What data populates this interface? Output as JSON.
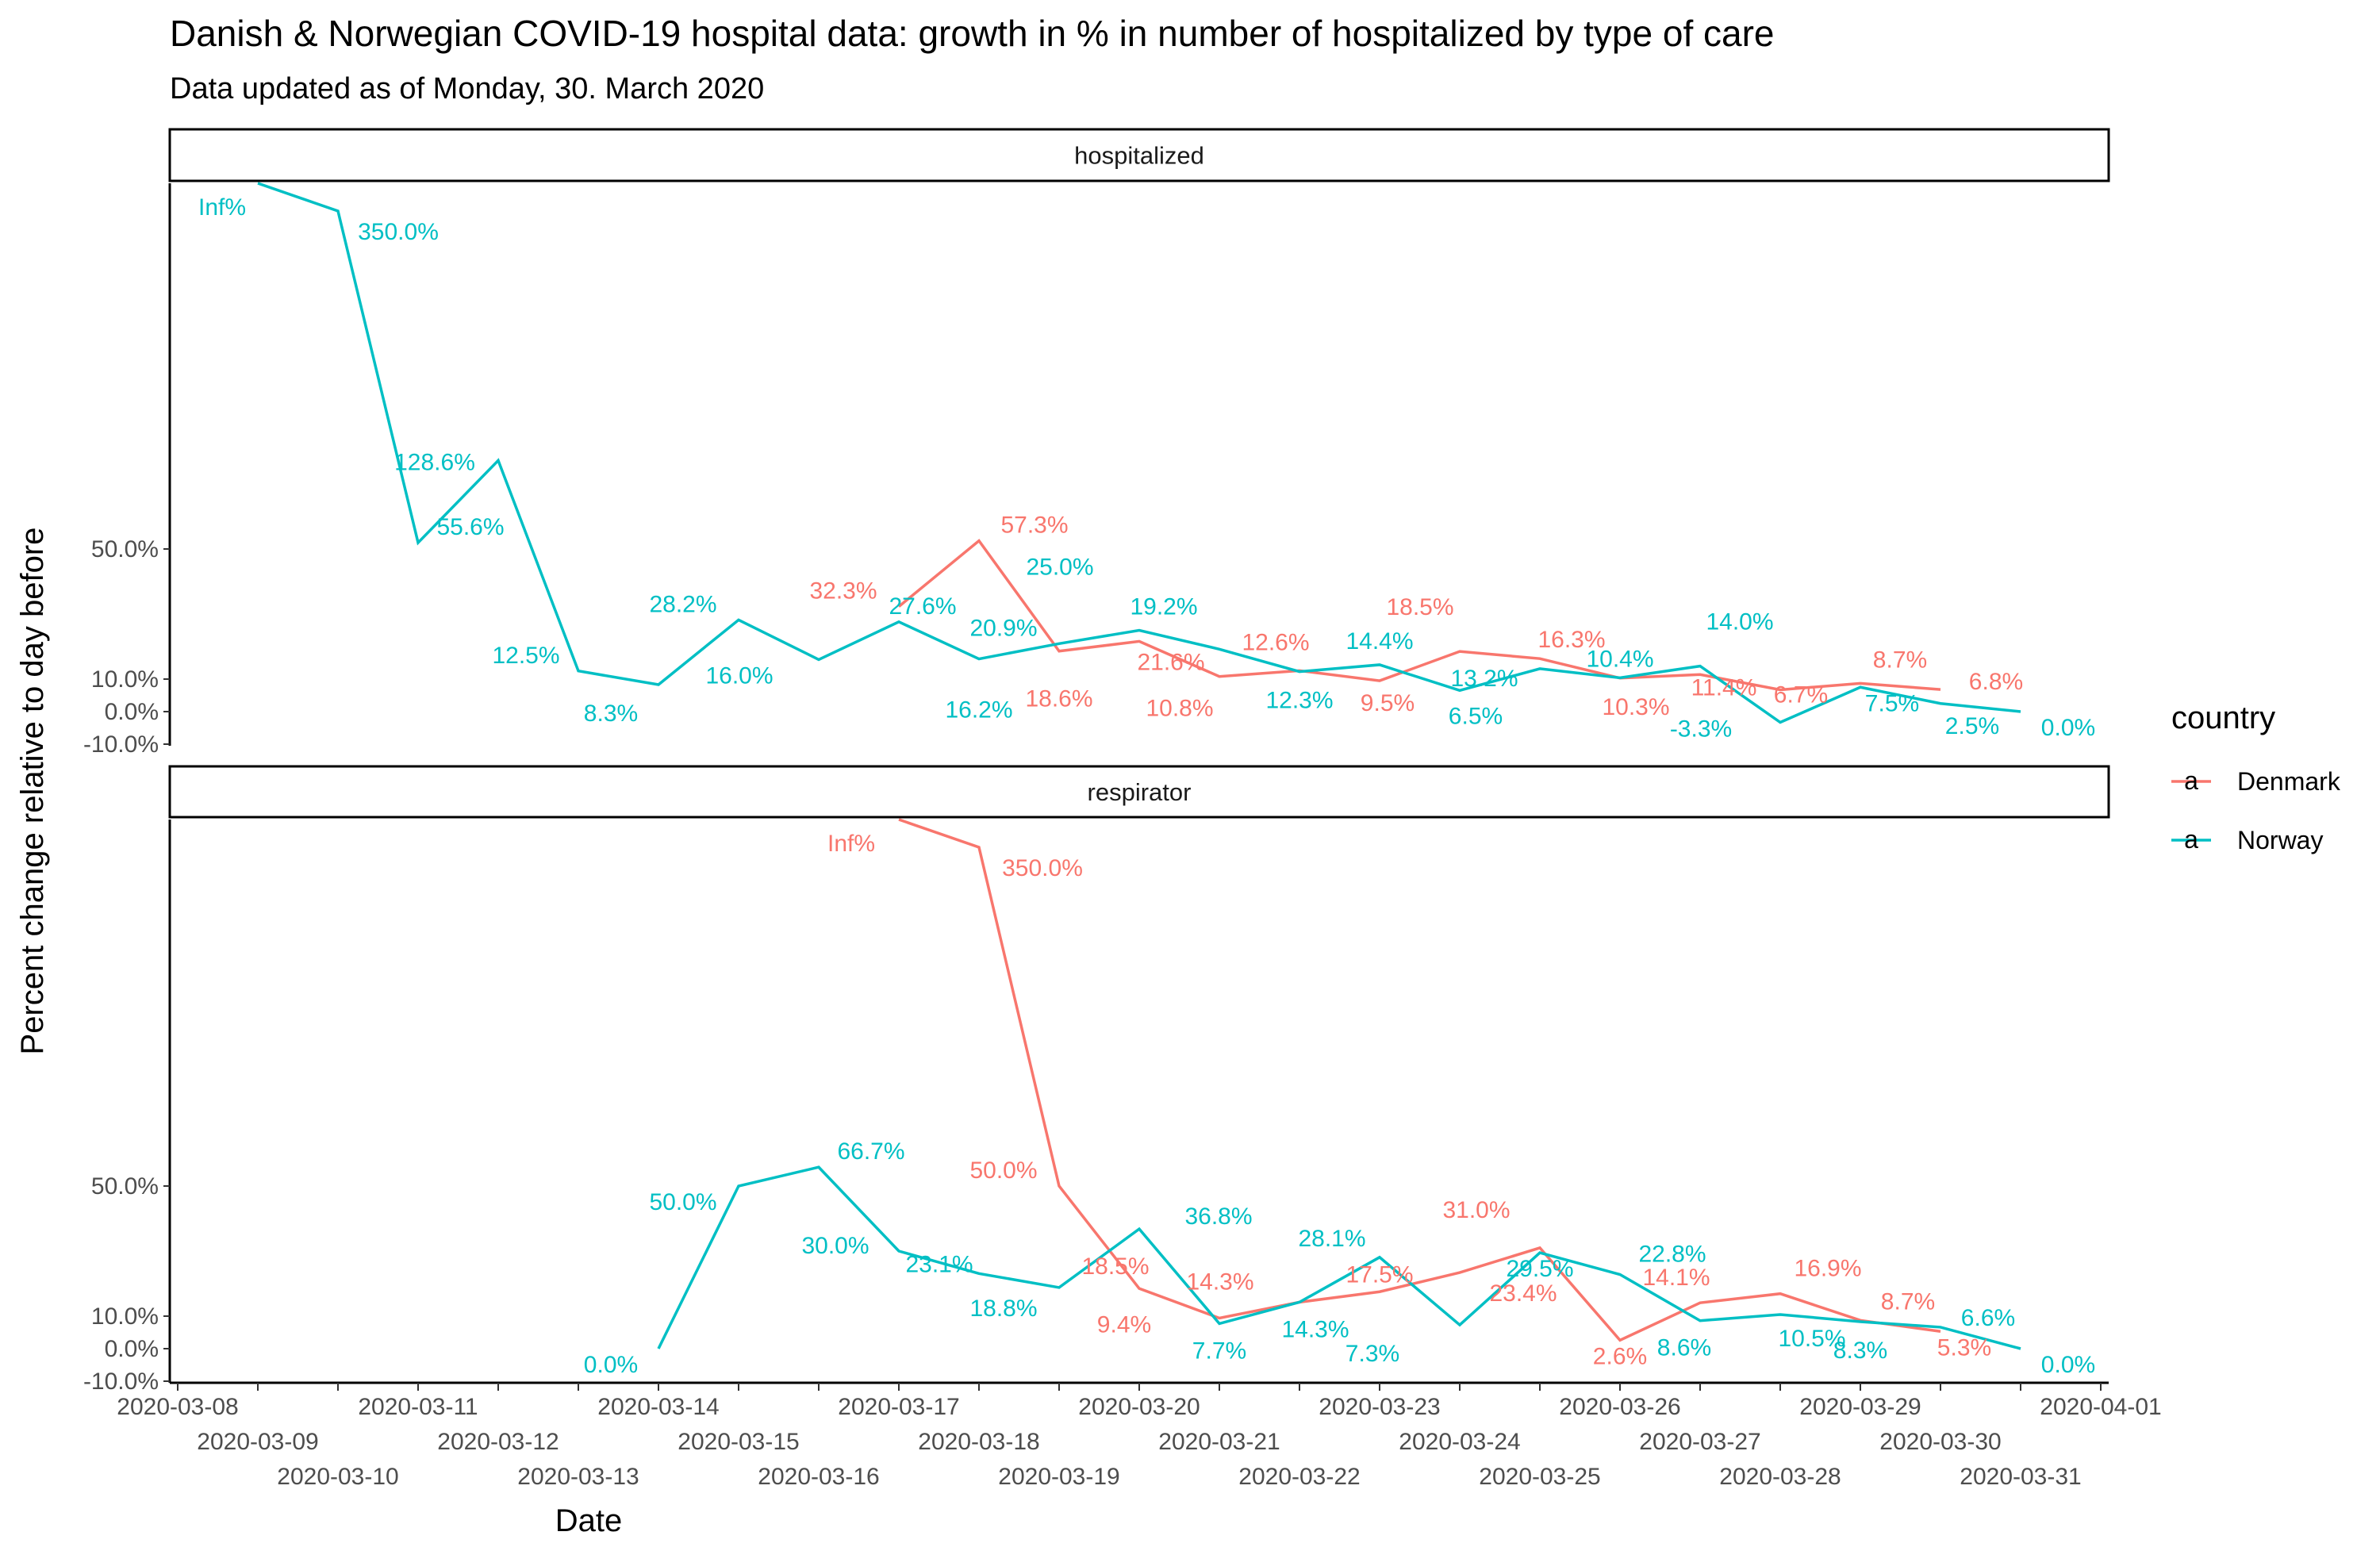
{
  "title": "Danish & Norwegian COVID-19 hospital data: growth in % in number of hospitalized by type of care",
  "subtitle": "Data updated as of Monday, 30. March 2020",
  "chart_data": {
    "type": "line",
    "xlabel": "Date",
    "ylabel": "Percent change relative to day before",
    "y_ticks": [
      "-10.0%",
      "0.0%",
      "10.0%",
      "50.0%"
    ],
    "y_tick_values": [
      -10,
      0,
      10,
      50
    ],
    "x_ticks": [
      "2020-03-08",
      "2020-03-09",
      "2020-03-10",
      "2020-03-11",
      "2020-03-12",
      "2020-03-13",
      "2020-03-14",
      "2020-03-15",
      "2020-03-16",
      "2020-03-17",
      "2020-03-18",
      "2020-03-19",
      "2020-03-20",
      "2020-03-21",
      "2020-03-22",
      "2020-03-23",
      "2020-03-24",
      "2020-03-25",
      "2020-03-26",
      "2020-03-27",
      "2020-03-28",
      "2020-03-29",
      "2020-03-30",
      "2020-03-31",
      "2020-04-01"
    ],
    "legend": {
      "title": "country",
      "position": "right",
      "entries": [
        "Denmark",
        "Norway"
      ]
    },
    "colors": {
      "Denmark": "#F8766D",
      "Norway": "#00BFC4",
      "connector": "#aaaaaa"
    },
    "panels": [
      {
        "strip": "hospitalized",
        "series": [
          {
            "name": "Denmark",
            "points": [
              {
                "x": "2020-03-17",
                "y": 32.3,
                "label": "32.3%"
              },
              {
                "x": "2020-03-18",
                "y": 57.3,
                "label": "57.3%"
              },
              {
                "x": "2020-03-19",
                "y": 18.6,
                "label": "18.6%"
              },
              {
                "x": "2020-03-20",
                "y": 21.6,
                "label": "21.6%"
              },
              {
                "x": "2020-03-21",
                "y": 10.8,
                "label": "10.8%"
              },
              {
                "x": "2020-03-22",
                "y": 12.6,
                "label": "12.6%"
              },
              {
                "x": "2020-03-23",
                "y": 9.5,
                "label": "9.5%"
              },
              {
                "x": "2020-03-24",
                "y": 18.5,
                "label": "18.5%"
              },
              {
                "x": "2020-03-25",
                "y": 16.3,
                "label": "16.3%"
              },
              {
                "x": "2020-03-26",
                "y": 10.3,
                "label": "10.3%"
              },
              {
                "x": "2020-03-27",
                "y": 11.4,
                "label": "11.4%"
              },
              {
                "x": "2020-03-28",
                "y": 6.7,
                "label": "6.7%"
              },
              {
                "x": "2020-03-29",
                "y": 8.7,
                "label": "8.7%"
              },
              {
                "x": "2020-03-30",
                "y": 6.8,
                "label": "6.8%"
              }
            ]
          },
          {
            "name": "Norway",
            "points": [
              {
                "x": "2020-03-09",
                "y": "Inf",
                "label": "Inf%"
              },
              {
                "x": "2020-03-10",
                "y": 350.0,
                "label": "350.0%"
              },
              {
                "x": "2020-03-11",
                "y": 55.6,
                "label": "55.6%"
              },
              {
                "x": "2020-03-12",
                "y": 128.6,
                "label": "128.6%"
              },
              {
                "x": "2020-03-13",
                "y": 12.5,
                "label": "12.5%"
              },
              {
                "x": "2020-03-14",
                "y": 8.3,
                "label": "8.3%"
              },
              {
                "x": "2020-03-15",
                "y": 28.2,
                "label": "28.2%"
              },
              {
                "x": "2020-03-16",
                "y": 16.0,
                "label": "16.0%"
              },
              {
                "x": "2020-03-17",
                "y": 27.6,
                "label": "27.6%"
              },
              {
                "x": "2020-03-18",
                "y": 16.2,
                "label": "16.2%"
              },
              {
                "x": "2020-03-19",
                "y": 20.9,
                "label": "20.9%"
              },
              {
                "x": "2020-03-20",
                "y": 25.0,
                "label": "25.0%"
              },
              {
                "x": "2020-03-21",
                "y": 19.2,
                "label": "19.2%"
              },
              {
                "x": "2020-03-22",
                "y": 12.3,
                "label": "12.3%"
              },
              {
                "x": "2020-03-23",
                "y": 14.4,
                "label": "14.4%"
              },
              {
                "x": "2020-03-24",
                "y": 6.5,
                "label": "6.5%"
              },
              {
                "x": "2020-03-25",
                "y": 13.2,
                "label": "13.2%"
              },
              {
                "x": "2020-03-26",
                "y": 10.4,
                "label": "10.4%"
              },
              {
                "x": "2020-03-27",
                "y": 14.0,
                "label": "14.0%"
              },
              {
                "x": "2020-03-28",
                "y": -3.3,
                "label": "-3.3%"
              },
              {
                "x": "2020-03-29",
                "y": 7.5,
                "label": "7.5%"
              },
              {
                "x": "2020-03-30",
                "y": 2.5,
                "label": "2.5%"
              },
              {
                "x": "2020-03-31",
                "y": 0.0,
                "label": "0.0%"
              }
            ]
          }
        ]
      },
      {
        "strip": "respirator",
        "series": [
          {
            "name": "Denmark",
            "points": [
              {
                "x": "2020-03-17",
                "y": "Inf",
                "label": "Inf%"
              },
              {
                "x": "2020-03-18",
                "y": 350.0,
                "label": "350.0%"
              },
              {
                "x": "2020-03-19",
                "y": 50.0,
                "label": "50.0%"
              },
              {
                "x": "2020-03-20",
                "y": 18.5,
                "label": "18.5%"
              },
              {
                "x": "2020-03-21",
                "y": 9.4,
                "label": "9.4%"
              },
              {
                "x": "2020-03-22",
                "y": 14.3,
                "label": "14.3%"
              },
              {
                "x": "2020-03-23",
                "y": 17.5,
                "label": "17.5%"
              },
              {
                "x": "2020-03-24",
                "y": 23.4,
                "label": "23.4%"
              },
              {
                "x": "2020-03-25",
                "y": 31.0,
                "label": "31.0%"
              },
              {
                "x": "2020-03-26",
                "y": 2.6,
                "label": "2.6%"
              },
              {
                "x": "2020-03-27",
                "y": 14.1,
                "label": "14.1%"
              },
              {
                "x": "2020-03-28",
                "y": 16.9,
                "label": "16.9%"
              },
              {
                "x": "2020-03-29",
                "y": 8.7,
                "label": "8.7%"
              },
              {
                "x": "2020-03-30",
                "y": 5.3,
                "label": "5.3%"
              }
            ]
          },
          {
            "name": "Norway",
            "points": [
              {
                "x": "2020-03-14",
                "y": 0.0,
                "label": "0.0%"
              },
              {
                "x": "2020-03-15",
                "y": 50.0,
                "label": "50.0%"
              },
              {
                "x": "2020-03-16",
                "y": 66.7,
                "label": "66.7%"
              },
              {
                "x": "2020-03-17",
                "y": 30.0,
                "label": "30.0%"
              },
              {
                "x": "2020-03-18",
                "y": 23.1,
                "label": "23.1%"
              },
              {
                "x": "2020-03-19",
                "y": 18.8,
                "label": "18.8%"
              },
              {
                "x": "2020-03-20",
                "y": 36.8,
                "label": "36.8%"
              },
              {
                "x": "2020-03-21",
                "y": 7.7,
                "label": "7.7%"
              },
              {
                "x": "2020-03-22",
                "y": 14.3,
                "label": "14.3%"
              },
              {
                "x": "2020-03-23",
                "y": 28.1,
                "label": "28.1%"
              },
              {
                "x": "2020-03-24",
                "y": 7.3,
                "label": "7.3%"
              },
              {
                "x": "2020-03-25",
                "y": 29.5,
                "label": "29.5%"
              },
              {
                "x": "2020-03-26",
                "y": 22.8,
                "label": "22.8%"
              },
              {
                "x": "2020-03-27",
                "y": 8.6,
                "label": "8.6%"
              },
              {
                "x": "2020-03-28",
                "y": 10.5,
                "label": "10.5%"
              },
              {
                "x": "2020-03-29",
                "y": 8.3,
                "label": "8.3%"
              },
              {
                "x": "2020-03-30",
                "y": 6.6,
                "label": "6.6%"
              },
              {
                "x": "2020-03-31",
                "y": 0.0,
                "label": "0.0%"
              }
            ]
          }
        ]
      }
    ]
  }
}
